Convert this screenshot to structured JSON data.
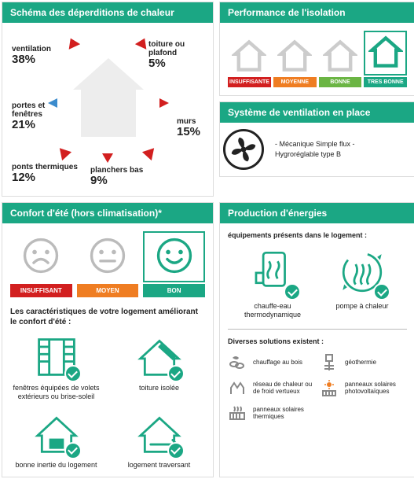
{
  "colors": {
    "teal": "#1ba784",
    "red": "#d21f1f",
    "orange": "#ef7d22",
    "green": "#6bb544",
    "grey": "#888"
  },
  "heatloss": {
    "title": "Schéma des déperditions de chaleur",
    "items": {
      "ventilation": {
        "label": "ventilation",
        "pct": "38%"
      },
      "roof": {
        "label": "toiture ou\nplafond",
        "pct": "5%"
      },
      "windows": {
        "label": "portes et\nfenêtres",
        "pct": "21%"
      },
      "walls": {
        "label": "murs",
        "pct": "15%"
      },
      "bridges": {
        "label": "ponts thermiques",
        "pct": "12%"
      },
      "floor": {
        "label": "planchers bas",
        "pct": "9%"
      }
    }
  },
  "insulation": {
    "title": "Performance de l'isolation",
    "levels": [
      {
        "label": "INSUFFISANTE",
        "color": "#d21f1f"
      },
      {
        "label": "MOYENNE",
        "color": "#ef7d22"
      },
      {
        "label": "BONNE",
        "color": "#6bb544"
      },
      {
        "label": "TRES BONNE",
        "color": "#1ba784"
      }
    ],
    "selected_index": 3
  },
  "ventilation": {
    "title": "Système de ventilation en place",
    "lines": [
      "- Mécanique Simple flux -",
      "Hygroréglable type B"
    ]
  },
  "comfort": {
    "title": "Confort d'été (hors climatisation)*",
    "faces": [
      {
        "label": "INSUFFISANT",
        "color": "#d21f1f",
        "mood": "sad"
      },
      {
        "label": "MOYEN",
        "color": "#ef7d22",
        "mood": "neutral"
      },
      {
        "label": "BON",
        "color": "#1ba784",
        "mood": "happy"
      }
    ],
    "selected_index": 2,
    "caption": "Les caractéristiques de votre logement améliorant le confort d'été :",
    "features": [
      {
        "label": "fenêtres équipées de volets extérieurs ou brise-soleil",
        "icon": "shutters"
      },
      {
        "label": "toiture isolée",
        "icon": "roof"
      },
      {
        "label": "bonne inertie du logement",
        "icon": "inertia"
      },
      {
        "label": "logement traversant",
        "icon": "traversing"
      }
    ]
  },
  "energy": {
    "title": "Production d'énergies",
    "equip_caption": "équipements présents dans le logement :",
    "equipment": [
      {
        "label": "chauffe-eau thermodynamique",
        "icon": "water-heater"
      },
      {
        "label": "pompe à chaleur",
        "icon": "heat-pump"
      }
    ],
    "solutions_caption": "Diverses solutions existent :",
    "solutions": [
      {
        "label": "chauffage au bois",
        "icon": "wood"
      },
      {
        "label": "géothermie",
        "icon": "geo"
      },
      {
        "label": "réseau de chaleur ou de froid vertueux",
        "icon": "network"
      },
      {
        "label": "panneaux solaires photovoltaïques",
        "icon": "pv"
      },
      {
        "label": "panneaux solaires thermiques",
        "icon": "thermal"
      }
    ]
  }
}
